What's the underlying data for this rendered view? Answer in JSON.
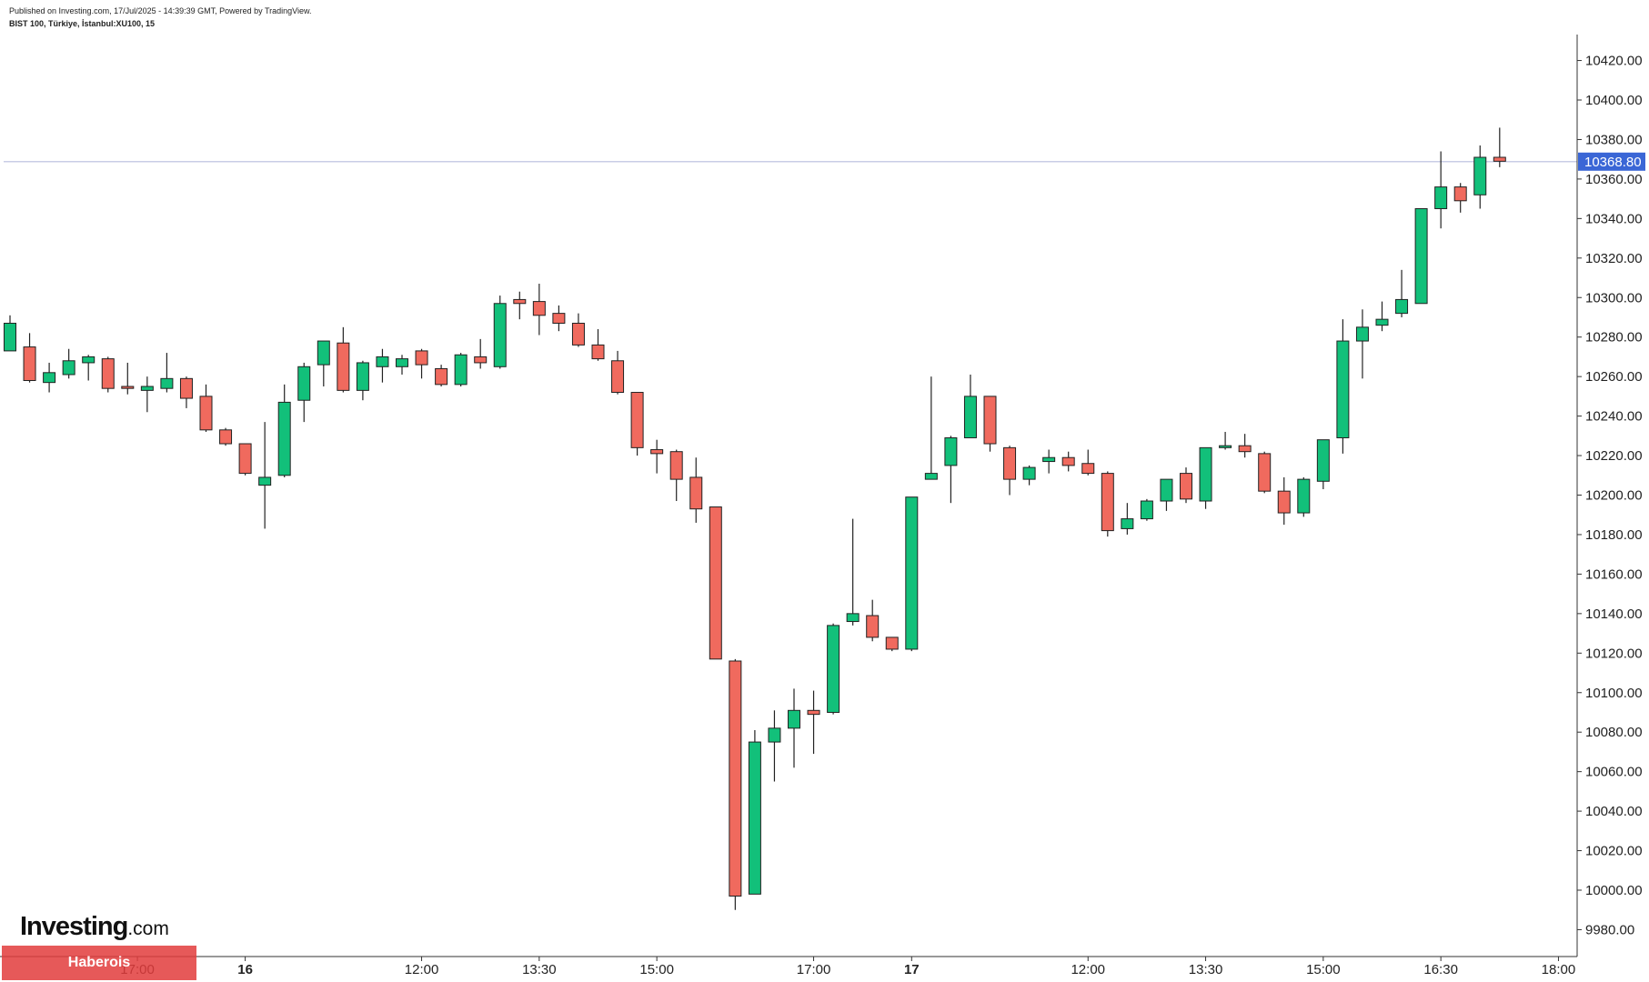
{
  "header": {
    "published": "Published on Investing.com, 17/Jul/2025 - 14:39:39 GMT, Powered by TradingView.",
    "symbol": "BIST 100, Türkiye, İstanbul:XU100, 15"
  },
  "logo": {
    "main": "Investing",
    "suffix": ".com"
  },
  "watermark": "Haberois",
  "colors": {
    "up": "#12c07a",
    "down": "#f06a5e",
    "last_price": "#3a66d6",
    "axis": "#333333",
    "price_line": "#c9cde6"
  },
  "chart_data": {
    "type": "candlestick",
    "title": "BIST 100, Türkiye, İstanbul:XU100, 15",
    "interval": "15",
    "last_price": 10368.8,
    "last_price_label": "10368.80",
    "y_axis": {
      "position": "right",
      "ylim": [
        9968,
        10436
      ],
      "ticks": [
        "9980.00",
        "10000.00",
        "10020.00",
        "10040.00",
        "10060.00",
        "10080.00",
        "10100.00",
        "10120.00",
        "10140.00",
        "10160.00",
        "10180.00",
        "10200.00",
        "10220.00",
        "10240.00",
        "10260.00",
        "10280.00",
        "10300.00",
        "10320.00",
        "10340.00",
        "10360.00",
        "10380.00",
        "10400.00",
        "10420.00"
      ]
    },
    "x_axis": {
      "ticks": [
        {
          "label": "17:00",
          "slot": 6.5,
          "bold": false
        },
        {
          "label": "16",
          "slot": 12.0,
          "bold": true
        },
        {
          "label": "12:00",
          "slot": 21.0,
          "bold": false
        },
        {
          "label": "13:30",
          "slot": 27.0,
          "bold": false
        },
        {
          "label": "15:00",
          "slot": 33.0,
          "bold": false
        },
        {
          "label": "17:00",
          "slot": 41.0,
          "bold": false
        },
        {
          "label": "17",
          "slot": 46.0,
          "bold": true
        },
        {
          "label": "12:00",
          "slot": 55.0,
          "bold": false
        },
        {
          "label": "13:30",
          "slot": 61.0,
          "bold": false
        },
        {
          "label": "15:00",
          "slot": 67.0,
          "bold": false
        },
        {
          "label": "16:30",
          "slot": 73.0,
          "bold": false
        },
        {
          "label": "18:00",
          "slot": 79.0,
          "bold": false
        }
      ]
    },
    "candles": [
      {
        "o": 10273,
        "h": 10291,
        "l": 10273,
        "c": 10287
      },
      {
        "o": 10275,
        "h": 10282,
        "l": 10257,
        "c": 10258
      },
      {
        "o": 10257,
        "h": 10267,
        "l": 10252,
        "c": 10262
      },
      {
        "o": 10261,
        "h": 10274,
        "l": 10259,
        "c": 10268
      },
      {
        "o": 10267,
        "h": 10271,
        "l": 10258,
        "c": 10270
      },
      {
        "o": 10269,
        "h": 10270,
        "l": 10252,
        "c": 10254
      },
      {
        "o": 10255,
        "h": 10267,
        "l": 10251,
        "c": 10254
      },
      {
        "o": 10253,
        "h": 10260,
        "l": 10242,
        "c": 10255
      },
      {
        "o": 10254,
        "h": 10272,
        "l": 10252,
        "c": 10259
      },
      {
        "o": 10259,
        "h": 10260,
        "l": 10244,
        "c": 10249
      },
      {
        "o": 10250,
        "h": 10256,
        "l": 10232,
        "c": 10233
      },
      {
        "o": 10233,
        "h": 10234,
        "l": 10225,
        "c": 10226
      },
      {
        "o": 10226,
        "h": 10226,
        "l": 10210,
        "c": 10211
      },
      {
        "o": 10205,
        "h": 10237,
        "l": 10183,
        "c": 10209
      },
      {
        "o": 10210,
        "h": 10256,
        "l": 10209,
        "c": 10247
      },
      {
        "o": 10248,
        "h": 10267,
        "l": 10237,
        "c": 10265
      },
      {
        "o": 10266,
        "h": 10278,
        "l": 10255,
        "c": 10278
      },
      {
        "o": 10277,
        "h": 10285,
        "l": 10252,
        "c": 10253
      },
      {
        "o": 10253,
        "h": 10268,
        "l": 10248,
        "c": 10267
      },
      {
        "o": 10265,
        "h": 10274,
        "l": 10257,
        "c": 10270
      },
      {
        "o": 10265,
        "h": 10271,
        "l": 10261,
        "c": 10269
      },
      {
        "o": 10273,
        "h": 10274,
        "l": 10259,
        "c": 10266
      },
      {
        "o": 10264,
        "h": 10266,
        "l": 10255,
        "c": 10256
      },
      {
        "o": 10256,
        "h": 10272,
        "l": 10255,
        "c": 10271
      },
      {
        "o": 10270,
        "h": 10279,
        "l": 10264,
        "c": 10267
      },
      {
        "o": 10265,
        "h": 10301,
        "l": 10264,
        "c": 10297
      },
      {
        "o": 10299,
        "h": 10303,
        "l": 10289,
        "c": 10297
      },
      {
        "o": 10298,
        "h": 10307,
        "l": 10281,
        "c": 10291
      },
      {
        "o": 10292,
        "h": 10296,
        "l": 10283,
        "c": 10287
      },
      {
        "o": 10287,
        "h": 10292,
        "l": 10275,
        "c": 10276
      },
      {
        "o": 10276,
        "h": 10284,
        "l": 10268,
        "c": 10269
      },
      {
        "o": 10268,
        "h": 10273,
        "l": 10251,
        "c": 10252
      },
      {
        "o": 10252,
        "h": 10252,
        "l": 10220,
        "c": 10224
      },
      {
        "o": 10223,
        "h": 10228,
        "l": 10211,
        "c": 10221
      },
      {
        "o": 10222,
        "h": 10223,
        "l": 10197,
        "c": 10208
      },
      {
        "o": 10209,
        "h": 10219,
        "l": 10186,
        "c": 10193
      },
      {
        "o": 10194,
        "h": 10194,
        "l": 10117,
        "c": 10117
      },
      {
        "o": 10116,
        "h": 10117,
        "l": 9990,
        "c": 9997
      },
      {
        "o": 9998,
        "h": 10081,
        "l": 9998,
        "c": 10075
      },
      {
        "o": 10075,
        "h": 10091,
        "l": 10055,
        "c": 10082
      },
      {
        "o": 10082,
        "h": 10102,
        "l": 10062,
        "c": 10091
      },
      {
        "o": 10091,
        "h": 10101,
        "l": 10069,
        "c": 10089
      },
      {
        "o": 10090,
        "h": 10135,
        "l": 10089,
        "c": 10134
      },
      {
        "o": 10136,
        "h": 10188,
        "l": 10134,
        "c": 10140
      },
      {
        "o": 10139,
        "h": 10147,
        "l": 10126,
        "c": 10128
      },
      {
        "o": 10128,
        "h": 10128,
        "l": 10121,
        "c": 10122
      },
      {
        "o": 10122,
        "h": 10199,
        "l": 10121,
        "c": 10199
      },
      {
        "o": 10208,
        "h": 10260,
        "l": 10208,
        "c": 10211
      },
      {
        "o": 10215,
        "h": 10230,
        "l": 10196,
        "c": 10229
      },
      {
        "o": 10229,
        "h": 10261,
        "l": 10229,
        "c": 10250
      },
      {
        "o": 10250,
        "h": 10250,
        "l": 10222,
        "c": 10226
      },
      {
        "o": 10224,
        "h": 10225,
        "l": 10200,
        "c": 10208
      },
      {
        "o": 10208,
        "h": 10215,
        "l": 10205,
        "c": 10214
      },
      {
        "o": 10217,
        "h": 10223,
        "l": 10211,
        "c": 10219
      },
      {
        "o": 10219,
        "h": 10222,
        "l": 10212,
        "c": 10215
      },
      {
        "o": 10216,
        "h": 10223,
        "l": 10210,
        "c": 10211
      },
      {
        "o": 10211,
        "h": 10212,
        "l": 10179,
        "c": 10182
      },
      {
        "o": 10183,
        "h": 10196,
        "l": 10180,
        "c": 10188
      },
      {
        "o": 10188,
        "h": 10198,
        "l": 10187,
        "c": 10197
      },
      {
        "o": 10197,
        "h": 10208,
        "l": 10192,
        "c": 10208
      },
      {
        "o": 10211,
        "h": 10214,
        "l": 10196,
        "c": 10198
      },
      {
        "o": 10197,
        "h": 10224,
        "l": 10193,
        "c": 10224
      },
      {
        "o": 10224,
        "h": 10232,
        "l": 10223,
        "c": 10225
      },
      {
        "o": 10225,
        "h": 10231,
        "l": 10219,
        "c": 10222
      },
      {
        "o": 10221,
        "h": 10222,
        "l": 10201,
        "c": 10202
      },
      {
        "o": 10202,
        "h": 10209,
        "l": 10185,
        "c": 10191
      },
      {
        "o": 10191,
        "h": 10209,
        "l": 10189,
        "c": 10208
      },
      {
        "o": 10207,
        "h": 10228,
        "l": 10203,
        "c": 10228
      },
      {
        "o": 10229,
        "h": 10289,
        "l": 10221,
        "c": 10278
      },
      {
        "o": 10278,
        "h": 10294,
        "l": 10259,
        "c": 10285
      },
      {
        "o": 10286,
        "h": 10298,
        "l": 10283,
        "c": 10289
      },
      {
        "o": 10292,
        "h": 10314,
        "l": 10290,
        "c": 10299
      },
      {
        "o": 10297,
        "h": 10345,
        "l": 10297,
        "c": 10345
      },
      {
        "o": 10345,
        "h": 10374,
        "l": 10335,
        "c": 10356
      },
      {
        "o": 10356,
        "h": 10358,
        "l": 10343,
        "c": 10349
      },
      {
        "o": 10352,
        "h": 10377,
        "l": 10345,
        "c": 10371
      },
      {
        "o": 10371,
        "h": 10386,
        "l": 10366,
        "c": 10369
      }
    ]
  }
}
